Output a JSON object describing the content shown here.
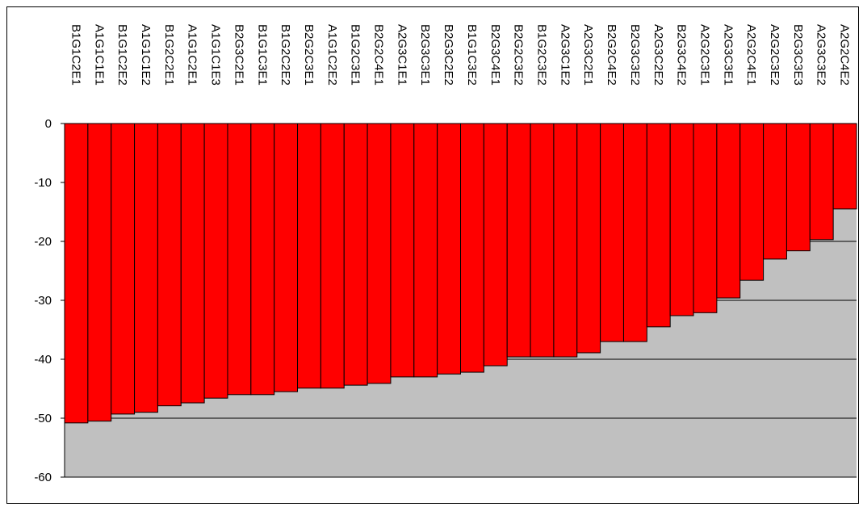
{
  "chart_data": {
    "type": "bar",
    "categories": [
      "B1G1C2E1",
      "A1G1C1E1",
      "B1G1C2E2",
      "A1G1C1E2",
      "B1G2C2E1",
      "A1G1C2E1",
      "A1G1C1E3",
      "B2G3C2E1",
      "B1G1C3E1",
      "B1G2C2E2",
      "B2G2C3E1",
      "A1G1C2E2",
      "B1G2C3E1",
      "B2G2C4E1",
      "A2G3C1E1",
      "B2G3C3E1",
      "B2G3C2E2",
      "B1G1C3E2",
      "B2G3C4E1",
      "B2G2C3E2",
      "B1G2C3E2",
      "A2G3C1E2",
      "A2G3C2E1",
      "B2G2C4E2",
      "B2G3C3E2",
      "A2G3C2E2",
      "B2G3C4E2",
      "A2G2C3E1",
      "A2G3C3E1",
      "A2G2C4E1",
      "A2G2C3E2",
      "B2G3C3E3",
      "A2G3C3E2",
      "A2G2C4E2"
    ],
    "values": [
      -50.8,
      -50.5,
      -49.3,
      -49.0,
      -47.9,
      -47.4,
      -46.6,
      -46.0,
      -46.0,
      -45.5,
      -44.9,
      -44.9,
      -44.4,
      -44.1,
      -43.0,
      -43.0,
      -42.5,
      -42.2,
      -41.1,
      -39.6,
      -39.6,
      -39.6,
      -38.9,
      -37.0,
      -37.0,
      -34.5,
      -32.6,
      -32.1,
      -29.6,
      -26.6,
      -23.0,
      -21.6,
      -19.7,
      -14.5
    ],
    "color": "#ff0000",
    "plot_background": "#c0c0c0",
    "ylim": [
      -60,
      0
    ],
    "yticks": [
      0,
      -10,
      -20,
      -30,
      -40,
      -50,
      -60
    ],
    "grid": true
  }
}
